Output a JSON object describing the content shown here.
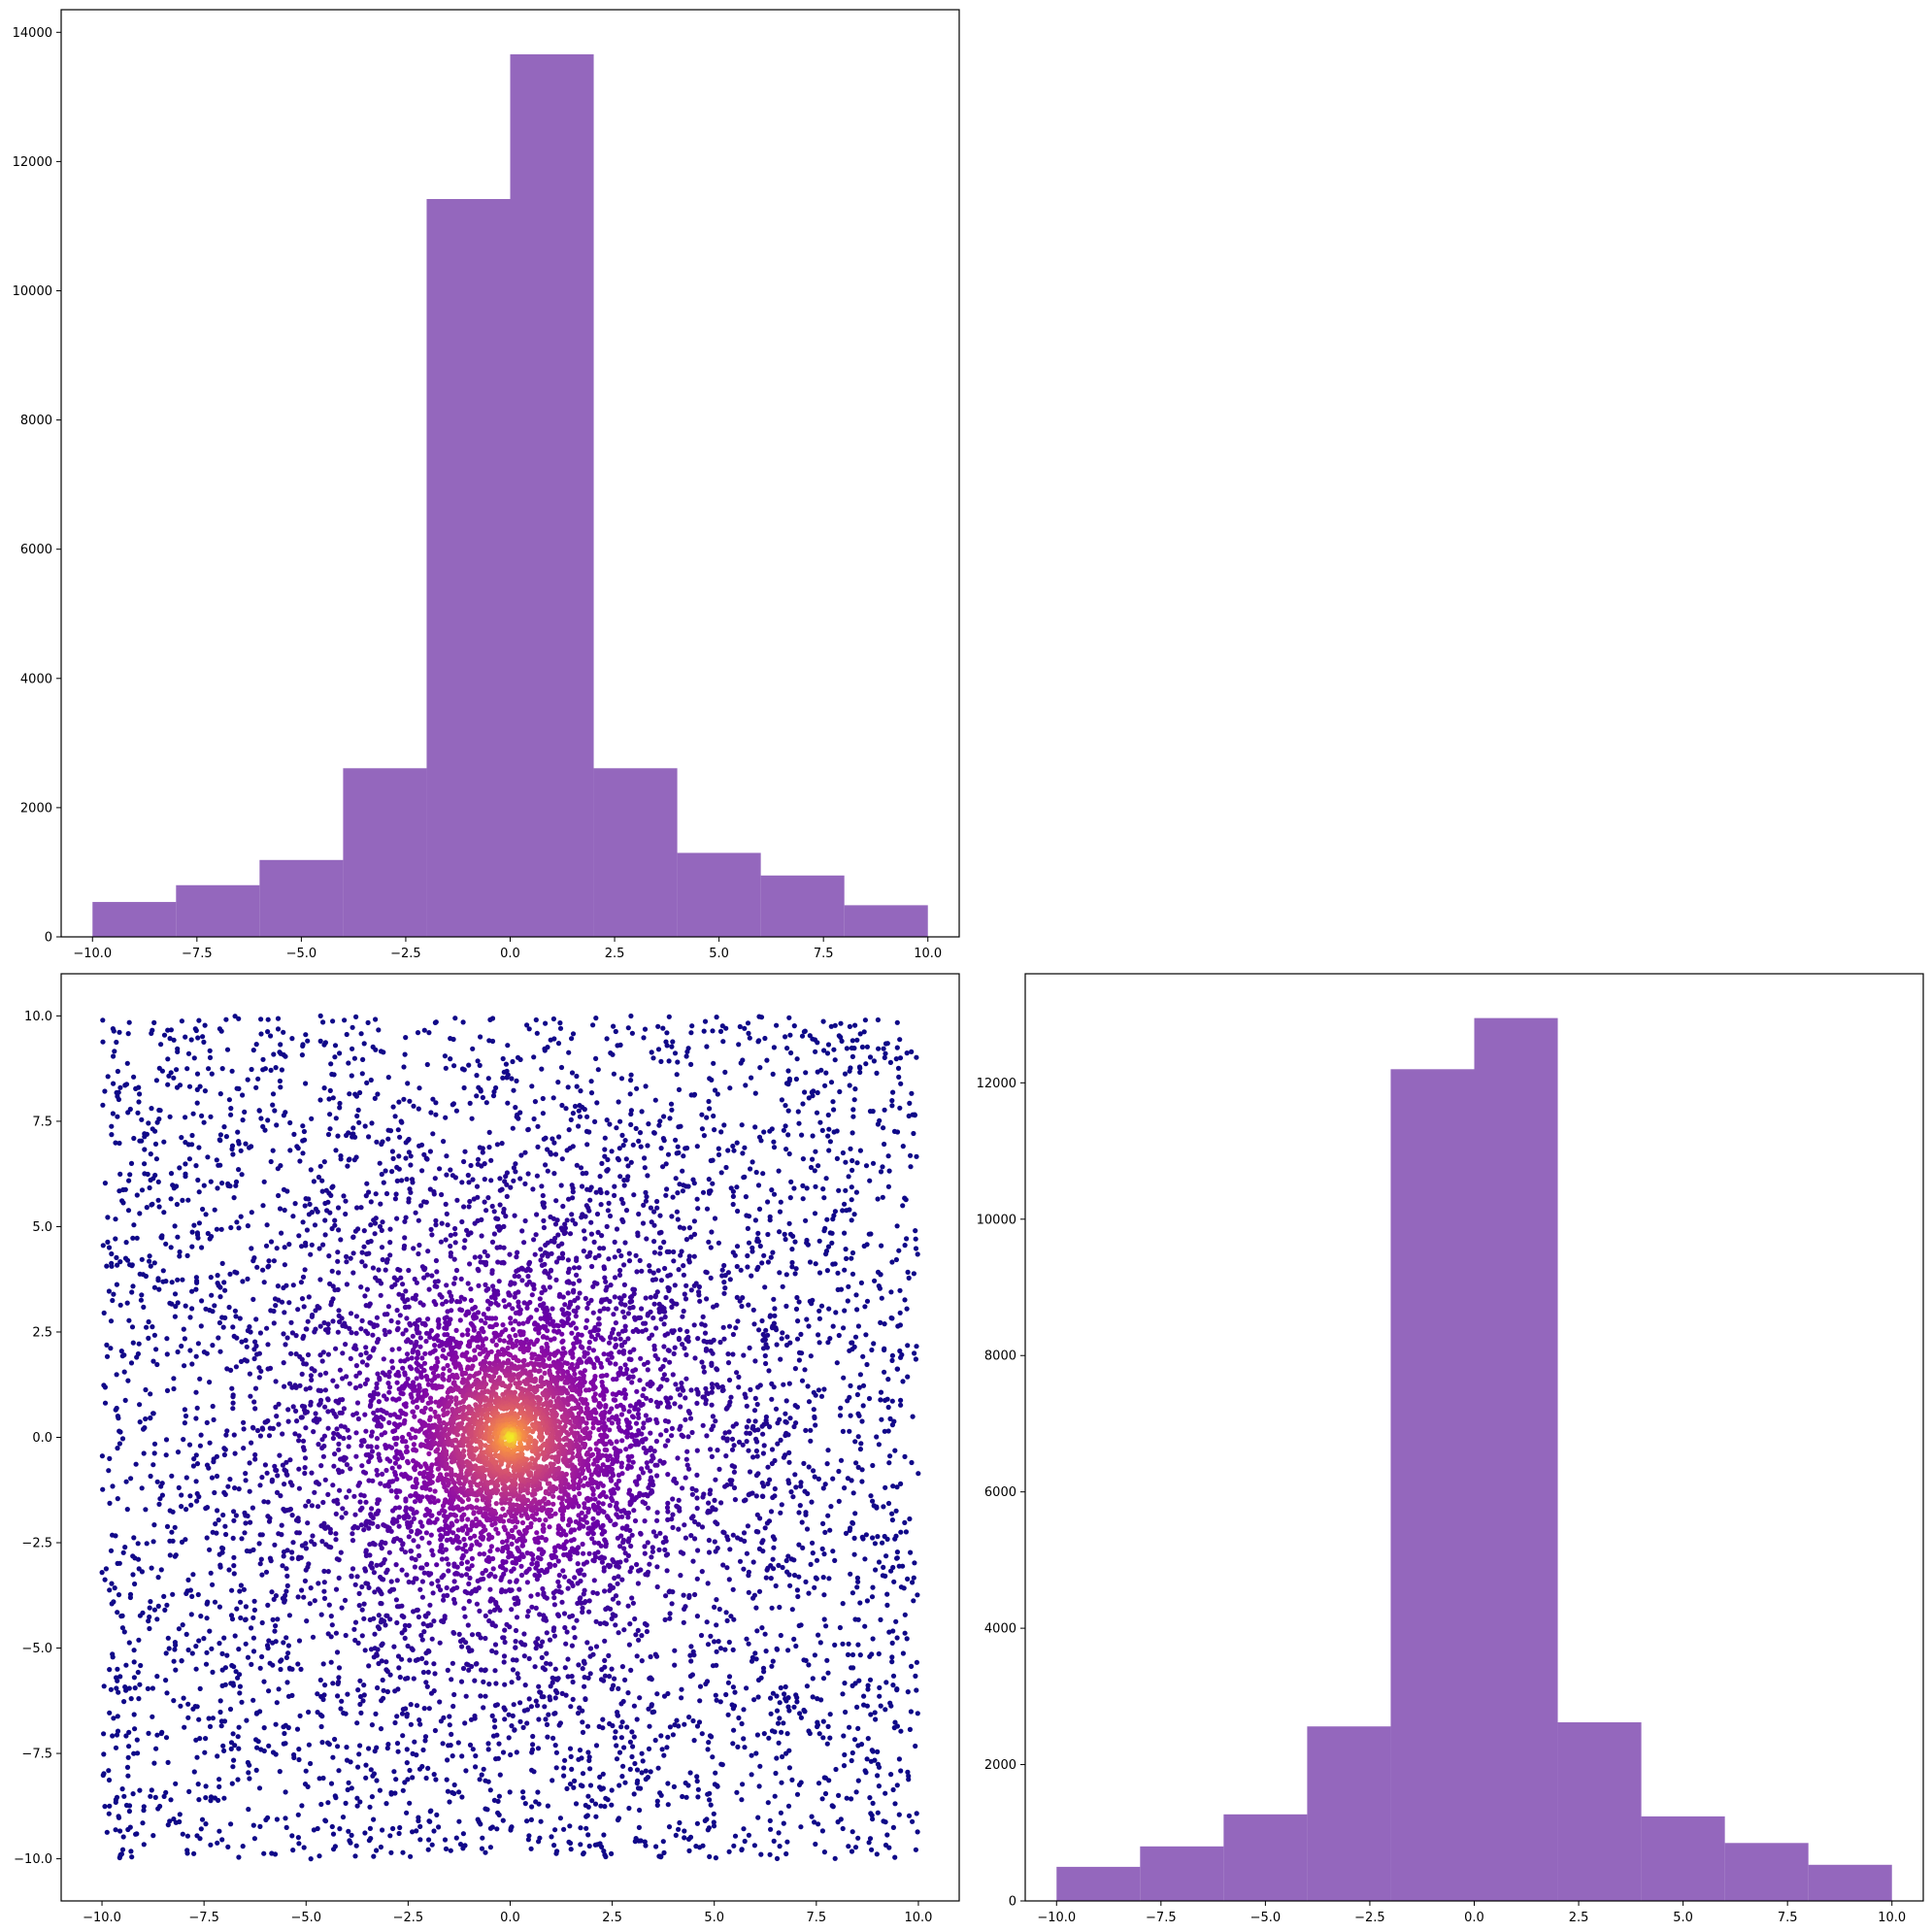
{
  "colors": {
    "bar_fill": "#9467bd",
    "axis": "#000000",
    "background": "#ffffff",
    "scatter_colormap": "plasma"
  },
  "chart_data": [
    {
      "id": "hist-top",
      "type": "bar",
      "title": "",
      "xlabel": "",
      "ylabel": "",
      "bin_edges": [
        -10,
        -8,
        -6,
        -4,
        -2,
        0,
        2,
        4,
        6,
        8,
        10
      ],
      "values": [
        540,
        800,
        1190,
        2610,
        11420,
        13660,
        2610,
        1300,
        950,
        490
      ],
      "xlim": [
        -10.75,
        10.75
      ],
      "ylim": [
        0,
        14350
      ],
      "xticks": [
        -10,
        -7.5,
        -5,
        -2.5,
        0,
        2.5,
        5,
        7.5,
        10
      ],
      "xtick_labels": [
        "−10.0",
        "−7.5",
        "−5.0",
        "−2.5",
        "0.0",
        "2.5",
        "5.0",
        "7.5",
        "10.0"
      ],
      "yticks": [
        0,
        2000,
        4000,
        6000,
        8000,
        10000,
        12000,
        14000
      ],
      "ytick_labels": [
        "0",
        "2000",
        "4000",
        "6000",
        "8000",
        "10000",
        "12000",
        "14000"
      ]
    },
    {
      "id": "scatter",
      "type": "scatter",
      "title": "",
      "xlabel": "",
      "ylabel": "",
      "description_of_distribution": "",
      "n_points": 9000,
      "x_range": [
        -10,
        10
      ],
      "y_range": [
        -10,
        10
      ],
      "color_by": "density, dark purple far from center to yellow at center (0, 0)",
      "xlim": [
        -11,
        11
      ],
      "ylim": [
        -11,
        11
      ],
      "xticks": [
        -10,
        -7.5,
        -5,
        -2.5,
        0,
        2.5,
        5,
        7.5,
        10
      ],
      "xtick_labels": [
        "−10.0",
        "−7.5",
        "−5.0",
        "−2.5",
        "0.0",
        "2.5",
        "5.0",
        "7.5",
        "10.0"
      ],
      "yticks": [
        -10,
        -7.5,
        -5,
        -2.5,
        0,
        2.5,
        5,
        7.5,
        10
      ],
      "ytick_labels": [
        "−10.0",
        "−7.5",
        "−5.0",
        "−2.5",
        "0.0",
        "2.5",
        "5.0",
        "7.5",
        "10.0"
      ]
    },
    {
      "id": "hist-right",
      "type": "bar",
      "title": "",
      "xlabel": "",
      "ylabel": "",
      "bin_edges": [
        -10,
        -8,
        -6,
        -4,
        -2,
        0,
        2,
        4,
        6,
        8,
        10
      ],
      "values": [
        500,
        800,
        1270,
        2560,
        12200,
        12950,
        2620,
        1240,
        850,
        530
      ],
      "xlim": [
        -10.75,
        10.75
      ],
      "ylim": [
        0,
        13600
      ],
      "xticks": [
        -10,
        -7.5,
        -5,
        -2.5,
        0,
        2.5,
        5,
        7.5,
        10
      ],
      "xtick_labels": [
        "−10.0",
        "−7.5",
        "−5.0",
        "−2.5",
        "0.0",
        "2.5",
        "5.0",
        "7.5",
        "10.0"
      ],
      "yticks": [
        0,
        2000,
        4000,
        6000,
        8000,
        10000,
        12000
      ],
      "ytick_labels": [
        "0",
        "2000",
        "4000",
        "6000",
        "8000",
        "10000",
        "12000"
      ]
    }
  ]
}
